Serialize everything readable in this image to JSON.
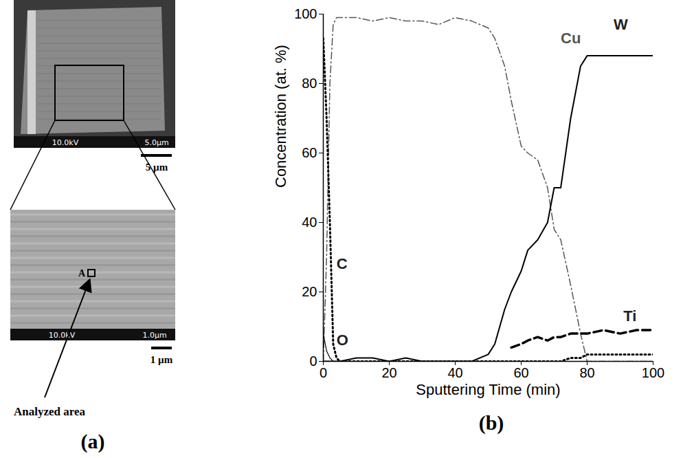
{
  "chart_data": {
    "type": "line",
    "panel_label": "(b)",
    "x_label": "Sputtering Time (min)",
    "y_label": "Concentration (at. %)",
    "x": [
      0,
      1,
      2,
      3,
      4,
      5,
      10,
      15,
      20,
      25,
      30,
      35,
      40,
      45,
      50,
      52,
      55,
      57,
      60,
      62,
      65,
      68,
      70,
      72,
      75,
      78,
      80,
      85,
      90,
      95,
      100
    ],
    "series": [
      {
        "name": "Cu",
        "color": "#555555",
        "line_style": "dashdot",
        "values": [
          0,
          30,
          80,
          97,
          99,
          99,
          99,
          98,
          99,
          98,
          98,
          97,
          99,
          98,
          96,
          93,
          85,
          75,
          62,
          60,
          58,
          50,
          38,
          35,
          22,
          8,
          0,
          0,
          0,
          0,
          0
        ]
      },
      {
        "name": "W",
        "color": "#000000",
        "line_style": "solid",
        "values": [
          0,
          0,
          0,
          0,
          0,
          0,
          1,
          1,
          0,
          1,
          0,
          0,
          0,
          0,
          2,
          5,
          15,
          20,
          26,
          32,
          35,
          40,
          50,
          50,
          70,
          85,
          88,
          88,
          88,
          88,
          88
        ]
      },
      {
        "name": "Ti",
        "color": "#000000",
        "line_style": "dashed",
        "values": [
          null,
          null,
          null,
          null,
          null,
          null,
          null,
          null,
          null,
          null,
          null,
          null,
          null,
          null,
          null,
          null,
          null,
          4,
          5,
          6,
          7,
          6,
          7,
          7,
          8,
          8,
          8,
          9,
          8,
          9,
          9
        ]
      },
      {
        "name": "C",
        "color": "#000000",
        "line_style": "dotted",
        "values": [
          93,
          70,
          40,
          5,
          1,
          0,
          0,
          0,
          0,
          0,
          0,
          0,
          0,
          0,
          0,
          0,
          0,
          0,
          0,
          0,
          0,
          0,
          0,
          0,
          1,
          1,
          2,
          2,
          2,
          2,
          2
        ]
      },
      {
        "name": "O",
        "color": "#000000",
        "line_style": "solid",
        "values": [
          8,
          3,
          1,
          0,
          0,
          0,
          0,
          0,
          0,
          0,
          0,
          0,
          0,
          0,
          0,
          0,
          0,
          0,
          0,
          0,
          0,
          0,
          0,
          0,
          0,
          0,
          0,
          0,
          0,
          0,
          0
        ]
      }
    ],
    "xlim": [
      0,
      100
    ],
    "xticks": [
      0,
      20,
      40,
      60,
      80,
      100
    ],
    "ylim": [
      0,
      100
    ],
    "yticks": [
      0,
      20,
      40,
      60,
      80,
      100
    ],
    "grid": false
  },
  "panel_a": {
    "panel_label": "(a)",
    "top_image": {
      "info_bar": [
        "10.0kV",
        "5.0µm"
      ],
      "scale_bar": "5 µm"
    },
    "bottom_image": {
      "info_bar": [
        "10.0kV",
        "1.0µm"
      ],
      "scale_bar": "1 µm",
      "marker": "A"
    },
    "arrow_label": "Analyzed area"
  }
}
